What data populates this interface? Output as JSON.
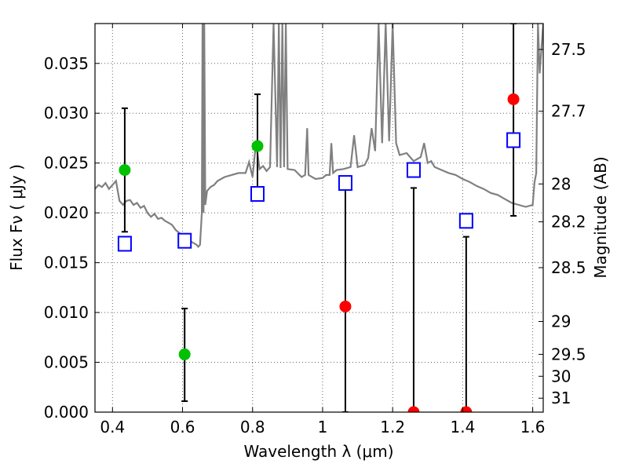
{
  "chart_data": {
    "type": "scatter",
    "xlabel": "Wavelength  λ (μm)",
    "ylabel": "Flux  Fν  ( μJy )",
    "y2label": "Magnitude (AB)",
    "xlim": [
      0.35,
      1.63
    ],
    "ylim": [
      0.0,
      0.039
    ],
    "grid": true,
    "x_ticks": [
      0.4,
      0.6,
      0.8,
      1.0,
      1.2,
      1.4,
      1.6
    ],
    "x_tick_labels": [
      "0.4",
      "0.6",
      "0.8",
      "1",
      "1.2",
      "1.4",
      "1.6"
    ],
    "y_ticks": [
      0.0,
      0.005,
      0.01,
      0.015,
      0.02,
      0.025,
      0.03,
      0.035
    ],
    "y_tick_labels": [
      "0.000",
      "0.005",
      "0.010",
      "0.015",
      "0.020",
      "0.025",
      "0.030",
      "0.035"
    ],
    "y2_ticks": [
      {
        "label": "27.5",
        "flux": 0.0364
      },
      {
        "label": "27.7",
        "flux": 0.0302
      },
      {
        "label": "28",
        "flux": 0.0229
      },
      {
        "label": "28.2",
        "flux": 0.0191
      },
      {
        "label": "28.5",
        "flux": 0.0145
      },
      {
        "label": "29",
        "flux": 0.0091
      },
      {
        "label": "29.5",
        "flux": 0.0058
      },
      {
        "label": "30",
        "flux": 0.0036
      },
      {
        "label": "31",
        "flux": 0.0014
      }
    ],
    "observed_detections": {
      "color": "#00c000",
      "points": [
        {
          "x": 0.435,
          "y": 0.0243,
          "yerr_low": 0.0181,
          "yerr_high": 0.0305
        },
        {
          "x": 0.606,
          "y": 0.0058,
          "yerr_low": 0.0011,
          "yerr_high": 0.0104
        },
        {
          "x": 0.814,
          "y": 0.0267,
          "yerr_low": 0.0213,
          "yerr_high": 0.0319
        }
      ]
    },
    "observed_upper_limits": {
      "color": "#ff0000",
      "points": [
        {
          "x": 1.065,
          "y": 0.0106,
          "yerr_low": 0.0,
          "yerr_high": 0.0225
        },
        {
          "x": 1.26,
          "y": 0.0,
          "yerr_low": 0.0,
          "yerr_high": 0.0225
        },
        {
          "x": 1.41,
          "y": 0.0,
          "yerr_low": 0.0,
          "yerr_high": 0.0176
        },
        {
          "x": 1.545,
          "y": 0.0314,
          "yerr_low": 0.0197,
          "yerr_high": 0.039
        }
      ]
    },
    "model_photometry": {
      "color": "#0000ff",
      "points": [
        {
          "x": 0.435,
          "y": 0.0169
        },
        {
          "x": 0.606,
          "y": 0.0172
        },
        {
          "x": 0.814,
          "y": 0.0219
        },
        {
          "x": 1.065,
          "y": 0.023
        },
        {
          "x": 1.26,
          "y": 0.0243
        },
        {
          "x": 1.41,
          "y": 0.0192
        },
        {
          "x": 1.545,
          "y": 0.0273
        }
      ]
    },
    "model_spectrum": {
      "color": "#808080",
      "x": [
        0.35,
        0.36,
        0.37,
        0.38,
        0.39,
        0.4,
        0.41,
        0.42,
        0.43,
        0.44,
        0.45,
        0.46,
        0.47,
        0.48,
        0.49,
        0.5,
        0.51,
        0.52,
        0.53,
        0.54,
        0.55,
        0.56,
        0.57,
        0.58,
        0.59,
        0.6,
        0.61,
        0.62,
        0.63,
        0.64,
        0.645,
        0.65,
        0.655,
        0.657,
        0.66,
        0.662,
        0.665,
        0.67,
        0.68,
        0.69,
        0.7,
        0.72,
        0.74,
        0.76,
        0.78,
        0.79,
        0.8,
        0.81,
        0.82,
        0.83,
        0.84,
        0.85,
        0.86,
        0.87,
        0.875,
        0.88,
        0.885,
        0.89,
        0.895,
        0.9,
        0.92,
        0.94,
        0.95,
        0.956,
        0.96,
        0.98,
        1.0,
        1.01,
        1.02,
        1.025,
        1.03,
        1.04,
        1.06,
        1.08,
        1.09,
        1.1,
        1.12,
        1.13,
        1.14,
        1.15,
        1.16,
        1.17,
        1.18,
        1.19,
        1.2,
        1.21,
        1.22,
        1.24,
        1.26,
        1.28,
        1.29,
        1.3,
        1.31,
        1.32,
        1.34,
        1.36,
        1.38,
        1.4,
        1.42,
        1.44,
        1.46,
        1.48,
        1.5,
        1.52,
        1.54,
        1.56,
        1.58,
        1.6,
        1.605,
        1.61,
        1.615,
        1.62,
        1.63
      ],
      "y": [
        0.0224,
        0.0228,
        0.0226,
        0.023,
        0.0224,
        0.0228,
        0.0232,
        0.0212,
        0.0208,
        0.0212,
        0.0213,
        0.0208,
        0.021,
        0.0205,
        0.0207,
        0.02,
        0.0196,
        0.0199,
        0.0194,
        0.0195,
        0.0192,
        0.019,
        0.0188,
        0.0183,
        0.018,
        0.0177,
        0.0174,
        0.0172,
        0.017,
        0.0168,
        0.0166,
        0.0168,
        0.02,
        0.039,
        0.02,
        0.039,
        0.0208,
        0.0222,
        0.0226,
        0.0228,
        0.0232,
        0.0236,
        0.0238,
        0.024,
        0.024,
        0.0251,
        0.0236,
        0.0271,
        0.0244,
        0.0247,
        0.0242,
        0.0246,
        0.039,
        0.0246,
        0.039,
        0.0245,
        0.039,
        0.0246,
        0.039,
        0.0244,
        0.0243,
        0.0236,
        0.0238,
        0.0285,
        0.0238,
        0.0234,
        0.0235,
        0.0238,
        0.0238,
        0.027,
        0.024,
        0.0243,
        0.0244,
        0.0246,
        0.0278,
        0.0246,
        0.0248,
        0.0255,
        0.0285,
        0.0262,
        0.039,
        0.027,
        0.039,
        0.0272,
        0.039,
        0.027,
        0.0258,
        0.026,
        0.0252,
        0.0256,
        0.027,
        0.025,
        0.0252,
        0.0246,
        0.0243,
        0.024,
        0.0238,
        0.0234,
        0.0231,
        0.0227,
        0.0224,
        0.022,
        0.0218,
        0.0214,
        0.021,
        0.0208,
        0.0206,
        0.0208,
        0.023,
        0.024,
        0.039,
        0.034,
        0.039
      ]
    }
  }
}
